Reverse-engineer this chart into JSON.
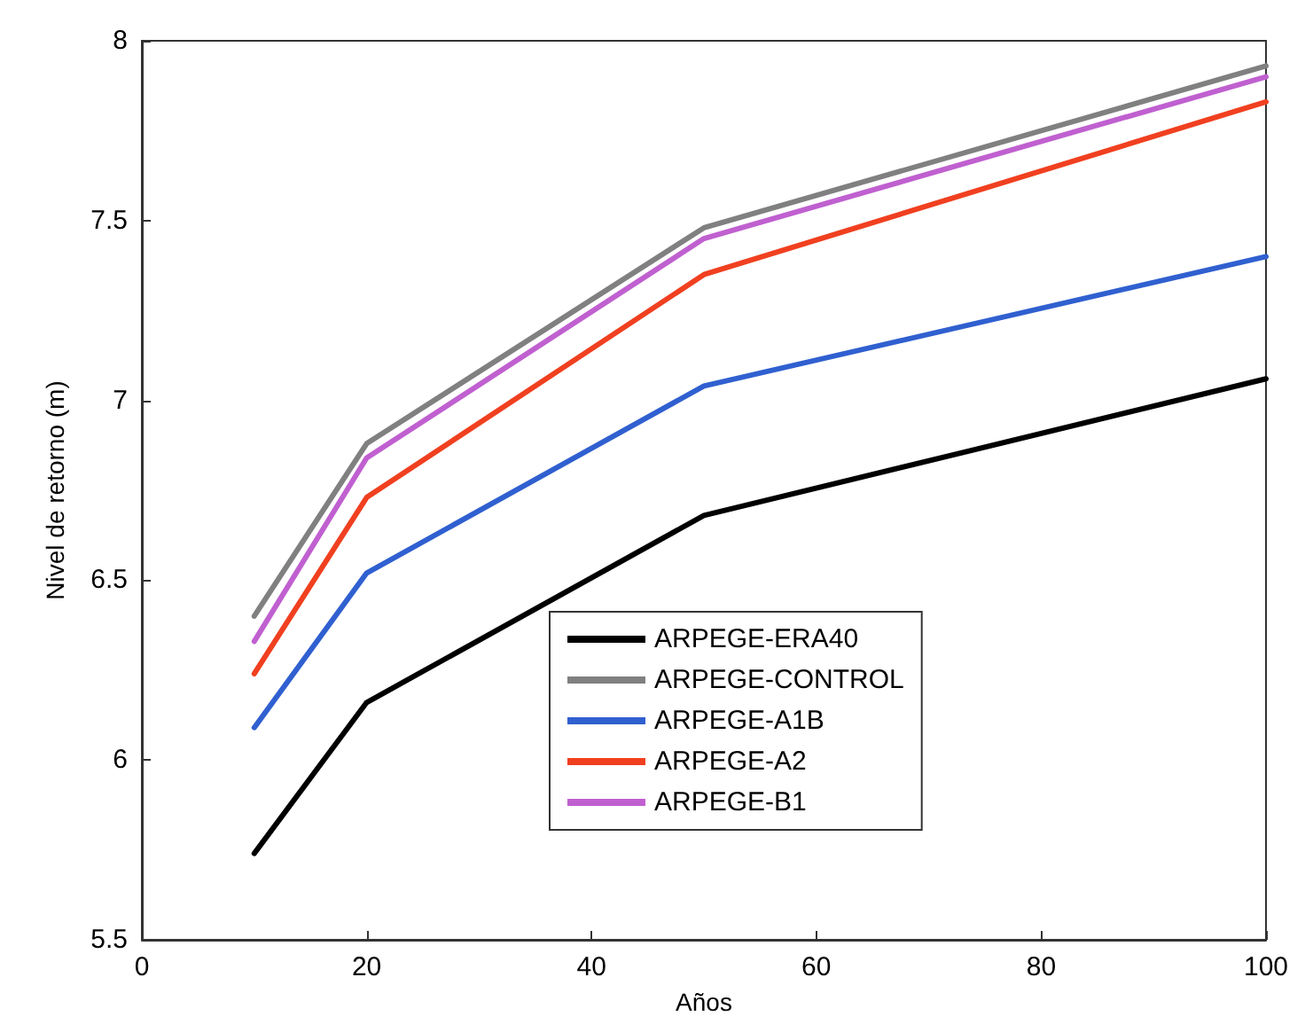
{
  "chart_data": {
    "type": "line",
    "xlabel": "Años",
    "ylabel": "Nivel de retorno (m)",
    "x": [
      10,
      20,
      50,
      100
    ],
    "series": [
      {
        "name": "ARPEGE-ERA40",
        "color": "#000000",
        "values": [
          5.74,
          6.16,
          6.68,
          7.06
        ]
      },
      {
        "name": "ARPEGE-CONTROL",
        "color": "#808080",
        "values": [
          6.4,
          6.88,
          7.48,
          7.93
        ]
      },
      {
        "name": "ARPEGE-A1B",
        "color": "#3060d0",
        "values": [
          6.09,
          6.52,
          7.04,
          7.4
        ]
      },
      {
        "name": "ARPEGE-A2",
        "color": "#f04020",
        "values": [
          6.24,
          6.73,
          7.35,
          7.83
        ]
      },
      {
        "name": "ARPEGE-B1",
        "color": "#c060d0",
        "values": [
          6.33,
          6.84,
          7.45,
          7.9
        ]
      }
    ],
    "xlim": [
      0,
      100
    ],
    "xticks": [
      0,
      20,
      40,
      60,
      80,
      100
    ],
    "ylim": [
      5.5,
      8
    ],
    "yticks": [
      5.5,
      6,
      6.5,
      7,
      7.5,
      8
    ],
    "grid": false,
    "legend": "bottom",
    "marker": "none",
    "line_style": "solid"
  }
}
